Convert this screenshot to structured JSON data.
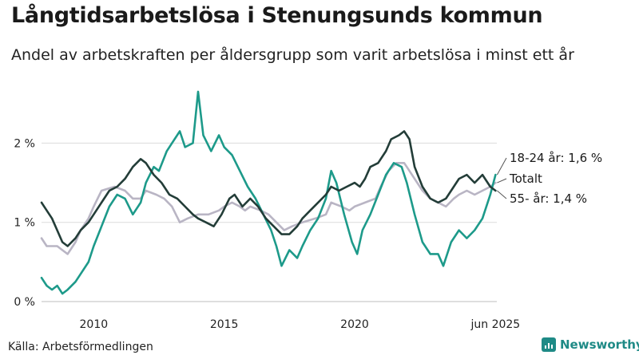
{
  "title": "Långtidsarbetslösa i Stenungsunds kommun",
  "subtitle": "Andel av arbetskraften per åldersgrupp som varit arbetslösa i minst ett år",
  "source": "Källa: Arbetsförmedlingen",
  "brand": {
    "name": "Newsworthy",
    "icon": "bar-chart-icon"
  },
  "chart_data": {
    "type": "line",
    "y_ticks": [
      {
        "value": 0,
        "label": "0 %"
      },
      {
        "value": 1,
        "label": "1 %"
      },
      {
        "value": 2,
        "label": "2 %"
      }
    ],
    "x_ticks": [
      {
        "value": 2010,
        "label": "2010"
      },
      {
        "value": 2015,
        "label": "2015"
      },
      {
        "value": 2020,
        "label": "2020"
      },
      {
        "value": 2025.4,
        "label": "jun 2025"
      }
    ],
    "xlim": [
      2008.0,
      2025.45
    ],
    "ylim": [
      0,
      2.8
    ],
    "grid": true,
    "series": [
      {
        "key": "totalt",
        "name": "Totalt",
        "label": "Totalt",
        "color": "#b9b5c4",
        "points": [
          [
            2008.0,
            0.8
          ],
          [
            2008.2,
            0.7
          ],
          [
            2008.6,
            0.7
          ],
          [
            2008.8,
            0.65
          ],
          [
            2009.0,
            0.6
          ],
          [
            2009.3,
            0.75
          ],
          [
            2009.5,
            0.9
          ],
          [
            2009.8,
            1.05
          ],
          [
            2010.0,
            1.2
          ],
          [
            2010.3,
            1.4
          ],
          [
            2010.8,
            1.45
          ],
          [
            2011.2,
            1.4
          ],
          [
            2011.5,
            1.3
          ],
          [
            2011.8,
            1.3
          ],
          [
            2012.0,
            1.4
          ],
          [
            2012.4,
            1.35
          ],
          [
            2012.7,
            1.3
          ],
          [
            2013.0,
            1.2
          ],
          [
            2013.3,
            1.0
          ],
          [
            2013.6,
            1.05
          ],
          [
            2014.0,
            1.1
          ],
          [
            2014.4,
            1.1
          ],
          [
            2014.8,
            1.15
          ],
          [
            2015.0,
            1.2
          ],
          [
            2015.3,
            1.25
          ],
          [
            2015.6,
            1.2
          ],
          [
            2015.8,
            1.15
          ],
          [
            2016.0,
            1.2
          ],
          [
            2016.4,
            1.15
          ],
          [
            2016.7,
            1.1
          ],
          [
            2017.0,
            1.0
          ],
          [
            2017.3,
            0.9
          ],
          [
            2017.6,
            0.95
          ],
          [
            2018.0,
            1.0
          ],
          [
            2018.5,
            1.05
          ],
          [
            2018.9,
            1.1
          ],
          [
            2019.1,
            1.25
          ],
          [
            2019.5,
            1.2
          ],
          [
            2019.8,
            1.15
          ],
          [
            2020.0,
            1.2
          ],
          [
            2020.4,
            1.25
          ],
          [
            2020.8,
            1.3
          ],
          [
            2021.0,
            1.45
          ],
          [
            2021.3,
            1.65
          ],
          [
            2021.6,
            1.75
          ],
          [
            2021.9,
            1.75
          ],
          [
            2022.0,
            1.7
          ],
          [
            2022.3,
            1.55
          ],
          [
            2022.6,
            1.4
          ],
          [
            2022.9,
            1.3
          ],
          [
            2023.2,
            1.25
          ],
          [
            2023.5,
            1.2
          ],
          [
            2023.8,
            1.3
          ],
          [
            2024.0,
            1.35
          ],
          [
            2024.3,
            1.4
          ],
          [
            2024.6,
            1.35
          ],
          [
            2024.9,
            1.4
          ],
          [
            2025.2,
            1.45
          ],
          [
            2025.4,
            1.5
          ]
        ]
      },
      {
        "key": "youth",
        "name": "18-24 år",
        "label": "18-24 år: 1,6 %",
        "color": "#1d9a8a",
        "points": [
          [
            2008.0,
            0.3
          ],
          [
            2008.2,
            0.2
          ],
          [
            2008.4,
            0.15
          ],
          [
            2008.6,
            0.2
          ],
          [
            2008.8,
            0.1
          ],
          [
            2009.0,
            0.15
          ],
          [
            2009.3,
            0.25
          ],
          [
            2009.5,
            0.35
          ],
          [
            2009.8,
            0.5
          ],
          [
            2010.0,
            0.7
          ],
          [
            2010.3,
            0.95
          ],
          [
            2010.6,
            1.2
          ],
          [
            2010.9,
            1.35
          ],
          [
            2011.2,
            1.3
          ],
          [
            2011.5,
            1.1
          ],
          [
            2011.8,
            1.25
          ],
          [
            2012.0,
            1.5
          ],
          [
            2012.3,
            1.7
          ],
          [
            2012.5,
            1.65
          ],
          [
            2012.8,
            1.9
          ],
          [
            2013.0,
            2.0
          ],
          [
            2013.3,
            2.15
          ],
          [
            2013.5,
            1.95
          ],
          [
            2013.8,
            2.0
          ],
          [
            2014.0,
            2.65
          ],
          [
            2014.2,
            2.1
          ],
          [
            2014.5,
            1.9
          ],
          [
            2014.8,
            2.1
          ],
          [
            2015.0,
            1.95
          ],
          [
            2015.3,
            1.85
          ],
          [
            2015.6,
            1.65
          ],
          [
            2015.9,
            1.45
          ],
          [
            2016.2,
            1.3
          ],
          [
            2016.5,
            1.1
          ],
          [
            2016.8,
            0.9
          ],
          [
            2017.0,
            0.7
          ],
          [
            2017.2,
            0.45
          ],
          [
            2017.5,
            0.65
          ],
          [
            2017.8,
            0.55
          ],
          [
            2018.0,
            0.7
          ],
          [
            2018.3,
            0.9
          ],
          [
            2018.6,
            1.05
          ],
          [
            2018.9,
            1.3
          ],
          [
            2019.1,
            1.65
          ],
          [
            2019.3,
            1.5
          ],
          [
            2019.6,
            1.1
          ],
          [
            2019.9,
            0.75
          ],
          [
            2020.1,
            0.6
          ],
          [
            2020.3,
            0.9
          ],
          [
            2020.6,
            1.1
          ],
          [
            2020.9,
            1.35
          ],
          [
            2021.2,
            1.6
          ],
          [
            2021.5,
            1.75
          ],
          [
            2021.8,
            1.7
          ],
          [
            2022.0,
            1.5
          ],
          [
            2022.3,
            1.1
          ],
          [
            2022.6,
            0.75
          ],
          [
            2022.9,
            0.6
          ],
          [
            2023.2,
            0.6
          ],
          [
            2023.4,
            0.45
          ],
          [
            2023.7,
            0.75
          ],
          [
            2024.0,
            0.9
          ],
          [
            2024.3,
            0.8
          ],
          [
            2024.6,
            0.9
          ],
          [
            2024.9,
            1.05
          ],
          [
            2025.2,
            1.35
          ],
          [
            2025.4,
            1.6
          ]
        ]
      },
      {
        "key": "older",
        "name": "55- år",
        "label": "55- år: 1,4 %",
        "color": "#233d38",
        "points": [
          [
            2008.0,
            1.25
          ],
          [
            2008.2,
            1.15
          ],
          [
            2008.4,
            1.05
          ],
          [
            2008.6,
            0.9
          ],
          [
            2008.8,
            0.75
          ],
          [
            2009.0,
            0.7
          ],
          [
            2009.3,
            0.8
          ],
          [
            2009.5,
            0.9
          ],
          [
            2009.8,
            1.0
          ],
          [
            2010.0,
            1.1
          ],
          [
            2010.3,
            1.25
          ],
          [
            2010.6,
            1.4
          ],
          [
            2010.9,
            1.45
          ],
          [
            2011.2,
            1.55
          ],
          [
            2011.5,
            1.7
          ],
          [
            2011.8,
            1.8
          ],
          [
            2012.0,
            1.75
          ],
          [
            2012.3,
            1.6
          ],
          [
            2012.6,
            1.5
          ],
          [
            2012.9,
            1.35
          ],
          [
            2013.2,
            1.3
          ],
          [
            2013.5,
            1.2
          ],
          [
            2013.8,
            1.1
          ],
          [
            2014.0,
            1.05
          ],
          [
            2014.3,
            1.0
          ],
          [
            2014.6,
            0.95
          ],
          [
            2014.9,
            1.1
          ],
          [
            2015.2,
            1.3
          ],
          [
            2015.4,
            1.35
          ],
          [
            2015.7,
            1.2
          ],
          [
            2016.0,
            1.3
          ],
          [
            2016.3,
            1.2
          ],
          [
            2016.6,
            1.05
          ],
          [
            2016.9,
            0.95
          ],
          [
            2017.2,
            0.85
          ],
          [
            2017.5,
            0.85
          ],
          [
            2017.8,
            0.95
          ],
          [
            2018.0,
            1.05
          ],
          [
            2018.3,
            1.15
          ],
          [
            2018.6,
            1.25
          ],
          [
            2018.9,
            1.35
          ],
          [
            2019.1,
            1.45
          ],
          [
            2019.4,
            1.4
          ],
          [
            2019.7,
            1.45
          ],
          [
            2020.0,
            1.5
          ],
          [
            2020.2,
            1.45
          ],
          [
            2020.4,
            1.55
          ],
          [
            2020.6,
            1.7
          ],
          [
            2020.9,
            1.75
          ],
          [
            2021.2,
            1.9
          ],
          [
            2021.4,
            2.05
          ],
          [
            2021.7,
            2.1
          ],
          [
            2021.9,
            2.15
          ],
          [
            2022.1,
            2.05
          ],
          [
            2022.3,
            1.7
          ],
          [
            2022.6,
            1.45
          ],
          [
            2022.9,
            1.3
          ],
          [
            2023.2,
            1.25
          ],
          [
            2023.5,
            1.3
          ],
          [
            2023.8,
            1.45
          ],
          [
            2024.0,
            1.55
          ],
          [
            2024.3,
            1.6
          ],
          [
            2024.6,
            1.5
          ],
          [
            2024.9,
            1.6
          ],
          [
            2025.2,
            1.45
          ],
          [
            2025.4,
            1.4
          ]
        ]
      }
    ]
  }
}
